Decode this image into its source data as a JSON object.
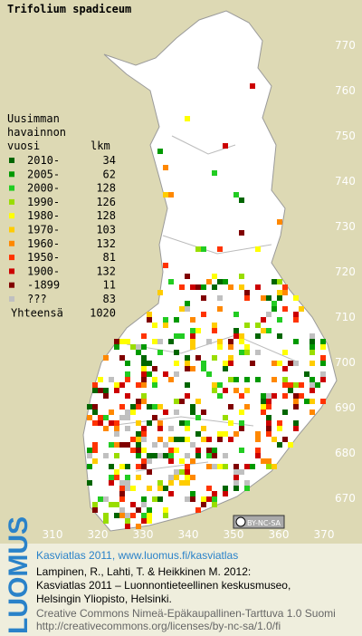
{
  "title": "Trifolium spadiceum",
  "legend": {
    "heading": [
      "Uusimman",
      "havainnon",
      "vuosi"
    ],
    "count_heading": "lkm",
    "items": [
      {
        "label": "2010-",
        "count": 34,
        "color": "#006600"
      },
      {
        "label": "2005-",
        "count": 62,
        "color": "#009900"
      },
      {
        "label": "2000-",
        "count": 128,
        "color": "#22cc22"
      },
      {
        "label": "1990-",
        "count": 126,
        "color": "#99dd00"
      },
      {
        "label": "1980-",
        "count": 128,
        "color": "#ffff00"
      },
      {
        "label": "1970-",
        "count": 103,
        "color": "#ffcc00"
      },
      {
        "label": "1960-",
        "count": 132,
        "color": "#ff8800"
      },
      {
        "label": "1950-",
        "count": 81,
        "color": "#ff3300"
      },
      {
        "label": "1900-",
        "count": 132,
        "color": "#cc0000"
      },
      {
        "label": "-1899",
        "count": 11,
        "color": "#800000"
      },
      {
        "label": "???",
        "count": 83,
        "color": "#c0c0c0"
      }
    ],
    "total_label": "Yhteensä",
    "total": 1020
  },
  "xticks": [
    310,
    320,
    330,
    340,
    350,
    360,
    370
  ],
  "yticks": [
    670,
    680,
    690,
    700,
    710,
    720,
    730,
    740,
    750,
    760,
    770
  ],
  "license_badge": "BY-NC-SA",
  "footer": {
    "logo": "LUOMUS",
    "headline": "Kasviatlas 2011, www.luomus.fi/kasviatlas",
    "citation": [
      "Lampinen, R., Lahti, T. & Heikkinen M. 2012:",
      "Kasviatlas 2011 – Luonnontieteellinen keskusmuseo,",
      "Helsingin Yliopisto, Helsinki."
    ],
    "license": [
      "Creative Commons Nimeä-Epäkaupallinen-Tarttuva 1.0 Suomi",
      "http://creativecommons.org/licenses/by-nc-sa/1.0/fi"
    ]
  }
}
